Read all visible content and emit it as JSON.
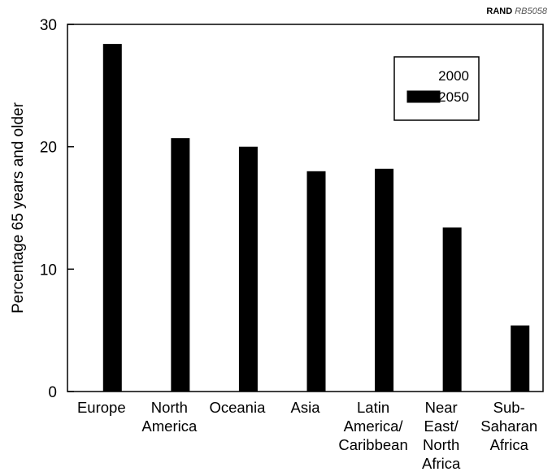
{
  "source_tag": {
    "org": "RAND",
    "code": "RB5058"
  },
  "chart_data": {
    "type": "bar",
    "title": "",
    "xlabel": "",
    "ylabel": "Percentage 65 years and older",
    "ylim": [
      0,
      30
    ],
    "yticks": [
      0,
      10,
      20,
      30
    ],
    "grid": false,
    "legend_position": "top-right",
    "categories": [
      [
        "Europe"
      ],
      [
        "North",
        "America"
      ],
      [
        "Oceania"
      ],
      [
        "Asia"
      ],
      [
        "Latin",
        "America/",
        "Caribbean"
      ],
      [
        "Near",
        "East/",
        "North",
        "Africa"
      ],
      [
        "Sub-",
        "Saharan",
        "Africa"
      ]
    ],
    "series": [
      {
        "name": "2000",
        "color": "#ffffff",
        "values": [
          null,
          null,
          null,
          null,
          null,
          null,
          null
        ]
      },
      {
        "name": "2050",
        "color": "#000000",
        "values": [
          28.4,
          20.7,
          20.0,
          18.0,
          18.2,
          13.4,
          5.4
        ]
      }
    ]
  }
}
